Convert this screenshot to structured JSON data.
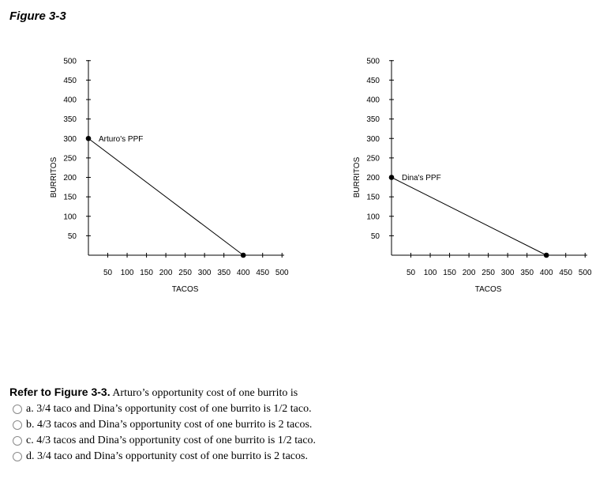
{
  "figure_title": "Figure 3-3",
  "chart_data": [
    {
      "type": "line",
      "xlabel": "TACOS",
      "ylabel": "BURRITOS",
      "xlim": [
        0,
        500
      ],
      "ylim": [
        0,
        500
      ],
      "x_ticks": [
        50,
        100,
        150,
        200,
        250,
        300,
        350,
        400,
        450,
        500
      ],
      "y_ticks": [
        50,
        100,
        150,
        200,
        250,
        300,
        350,
        400,
        450,
        500
      ],
      "grid": false,
      "series": [
        {
          "name": "Arturo's PPF",
          "x": [
            0,
            400
          ],
          "y": [
            300,
            0
          ],
          "color": "#000000"
        }
      ]
    },
    {
      "type": "line",
      "xlabel": "TACOS",
      "ylabel": "BURRITOS",
      "xlim": [
        0,
        500
      ],
      "ylim": [
        0,
        500
      ],
      "x_ticks": [
        50,
        100,
        150,
        200,
        250,
        300,
        350,
        400,
        450,
        500
      ],
      "y_ticks": [
        50,
        100,
        150,
        200,
        250,
        300,
        350,
        400,
        450,
        500
      ],
      "grid": false,
      "series": [
        {
          "name": "Dina's PPF",
          "x": [
            0,
            400
          ],
          "y": [
            200,
            0
          ],
          "color": "#000000"
        }
      ]
    }
  ],
  "question": {
    "lead": "Refer to Figure 3-3.",
    "text": " Arturo’s opportunity cost of one burrito is",
    "choices": [
      {
        "letter": "a.",
        "text": "3/4 taco and Dina’s opportunity cost of one burrito is 1/2 taco."
      },
      {
        "letter": "b.",
        "text": "4/3 tacos and Dina’s opportunity cost of one burrito is 2 tacos."
      },
      {
        "letter": "c.",
        "text": "4/3 tacos and Dina’s opportunity cost of one burrito is 1/2 taco."
      },
      {
        "letter": "d.",
        "text": "3/4 taco and Dina’s opportunity cost of one burrito is 2 tacos."
      }
    ]
  }
}
